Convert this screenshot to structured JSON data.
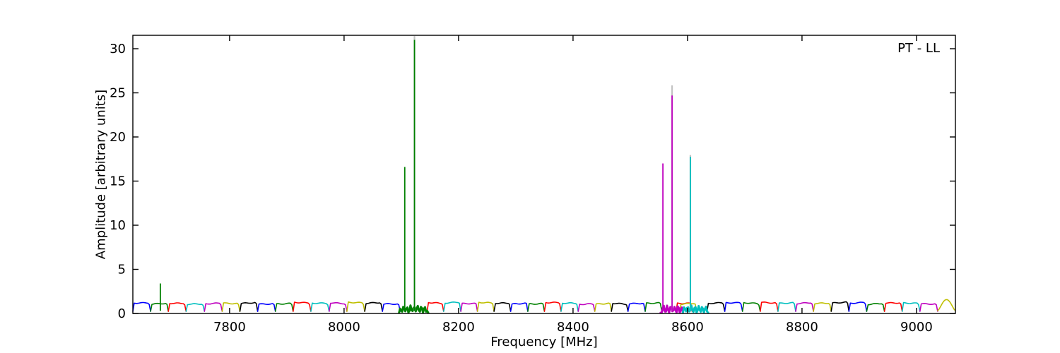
{
  "chart_data": {
    "type": "line",
    "title": "",
    "annotation": "PT - LL",
    "xlabel": "Frequency [MHz]",
    "ylabel": "Amplitude [arbitrary units]",
    "xlim": [
      7631,
      9068
    ],
    "ylim": [
      0,
      31.52
    ],
    "xticks": [
      7800,
      8000,
      8200,
      8400,
      8600,
      8800,
      9000
    ],
    "yticks": [
      0,
      5,
      10,
      15,
      20,
      25,
      30
    ],
    "grid": false,
    "legend_position": "none",
    "background": "#ffffff",
    "frame_color": "#000000",
    "colors": {
      "b": "#0000ff",
      "g": "#008000",
      "r": "#ff0000",
      "c": "#00bfbf",
      "m": "#bf00bf",
      "y": "#bfbf00",
      "k": "#000000",
      "gray": "#c3c3c3"
    },
    "band_amplitude": {
      "plateau": 1.2,
      "notch": 0.25
    },
    "bands": [
      [
        7631,
        7662,
        "b"
      ],
      [
        7662,
        7693,
        "g"
      ],
      [
        7693,
        7724,
        "r"
      ],
      [
        7724,
        7756,
        "c"
      ],
      [
        7756,
        7787,
        "m"
      ],
      [
        7787,
        7818,
        "y"
      ],
      [
        7818,
        7849,
        "k"
      ],
      [
        7849,
        7880,
        "b"
      ],
      [
        7880,
        7911,
        "g"
      ],
      [
        7911,
        7942,
        "r"
      ],
      [
        7942,
        7974,
        "c"
      ],
      [
        7974,
        8005,
        "m"
      ],
      [
        8005,
        8036,
        "y"
      ],
      [
        8036,
        8067,
        "k"
      ],
      [
        8067,
        8098,
        "b"
      ],
      [
        8145,
        8174,
        "r"
      ],
      [
        8174,
        8204,
        "c"
      ],
      [
        8204,
        8233,
        "m"
      ],
      [
        8233,
        8262,
        "y"
      ],
      [
        8262,
        8291,
        "k"
      ],
      [
        8291,
        8321,
        "b"
      ],
      [
        8321,
        8350,
        "g"
      ],
      [
        8350,
        8379,
        "r"
      ],
      [
        8379,
        8409,
        "c"
      ],
      [
        8409,
        8438,
        "m"
      ],
      [
        8438,
        8467,
        "y"
      ],
      [
        8467,
        8496,
        "k"
      ],
      [
        8496,
        8526,
        "b"
      ],
      [
        8526,
        8555,
        "g"
      ],
      [
        8580,
        8608,
        "r"
      ],
      [
        8586,
        8616,
        "y"
      ],
      [
        8634,
        8665,
        "k"
      ],
      [
        8665,
        8696,
        "b"
      ],
      [
        8696,
        8727,
        "g"
      ],
      [
        8727,
        8758,
        "r"
      ],
      [
        8758,
        8789,
        "c"
      ],
      [
        8789,
        8820,
        "m"
      ],
      [
        8820,
        8851,
        "y"
      ],
      [
        8851,
        8882,
        "k"
      ],
      [
        8882,
        8913,
        "b"
      ],
      [
        8913,
        8944,
        "g"
      ],
      [
        8944,
        8975,
        "r"
      ],
      [
        8975,
        9006,
        "c"
      ],
      [
        9006,
        9037,
        "m"
      ],
      [
        9037,
        9068,
        "y",
        "peak"
      ]
    ],
    "noisy_bands": [
      [
        8096,
        8147,
        "g"
      ],
      [
        8553,
        8592,
        "m"
      ],
      [
        8592,
        8636,
        "c"
      ]
    ],
    "spikes": [
      {
        "f": 7679,
        "top": 3.4,
        "color": "g"
      },
      {
        "f": 8106,
        "top": 16.6,
        "color": "g"
      },
      {
        "f": 8123,
        "top": 31.0,
        "gray_top": 31.45,
        "color": "g"
      },
      {
        "f": 8557,
        "top": 17.0,
        "color": "m"
      },
      {
        "f": 8573,
        "top": 24.7,
        "gray_top": 25.85,
        "color": "m"
      },
      {
        "f": 8605,
        "top": 17.75,
        "gray_top": 17.95,
        "color": "c"
      }
    ]
  }
}
